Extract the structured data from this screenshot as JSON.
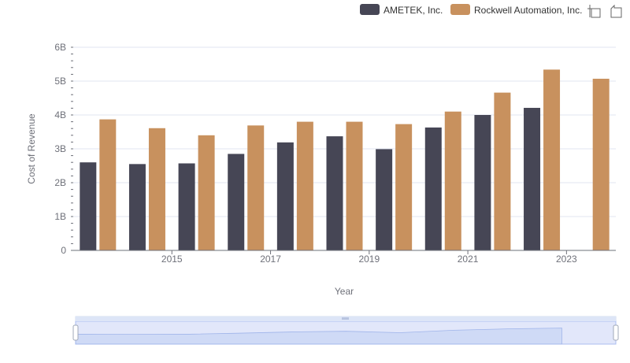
{
  "toolbox": {
    "zoom_icon": "zoom-icon",
    "reset_icon": "restore-icon"
  },
  "chart_data": {
    "type": "bar",
    "xlabel": "Year",
    "ylabel": "Cost of Revenue",
    "categories": [
      "2014",
      "2015",
      "2016",
      "2017",
      "2018",
      "2019",
      "2020",
      "2021",
      "2022",
      "2023",
      "2024"
    ],
    "x_tick_labels_shown": [
      "2015",
      "2017",
      "2019",
      "2021",
      "2023"
    ],
    "ylim": [
      0,
      6000000000
    ],
    "y_ticks": [
      {
        "value": 0,
        "label": "0"
      },
      {
        "value": 1000000000,
        "label": "1B"
      },
      {
        "value": 2000000000,
        "label": "2B"
      },
      {
        "value": 3000000000,
        "label": "3B"
      },
      {
        "value": 4000000000,
        "label": "4B"
      },
      {
        "value": 5000000000,
        "label": "5B"
      },
      {
        "value": 6000000000,
        "label": "6B"
      }
    ],
    "grid": true,
    "legend_position": "top-right",
    "series": [
      {
        "name": "AMETEK, Inc.",
        "color": "#464655",
        "values": [
          2600000000,
          2550000000,
          2570000000,
          2850000000,
          3190000000,
          3370000000,
          2990000000,
          3630000000,
          4000000000,
          4210000000,
          null
        ]
      },
      {
        "name": "Rockwell Automation, Inc.",
        "color": "#c8915e",
        "values": [
          3870000000,
          3610000000,
          3400000000,
          3690000000,
          3800000000,
          3800000000,
          3730000000,
          4100000000,
          4660000000,
          5340000000,
          5070000000
        ]
      }
    ],
    "data_zoom": {
      "start": 0,
      "end": 100
    }
  }
}
